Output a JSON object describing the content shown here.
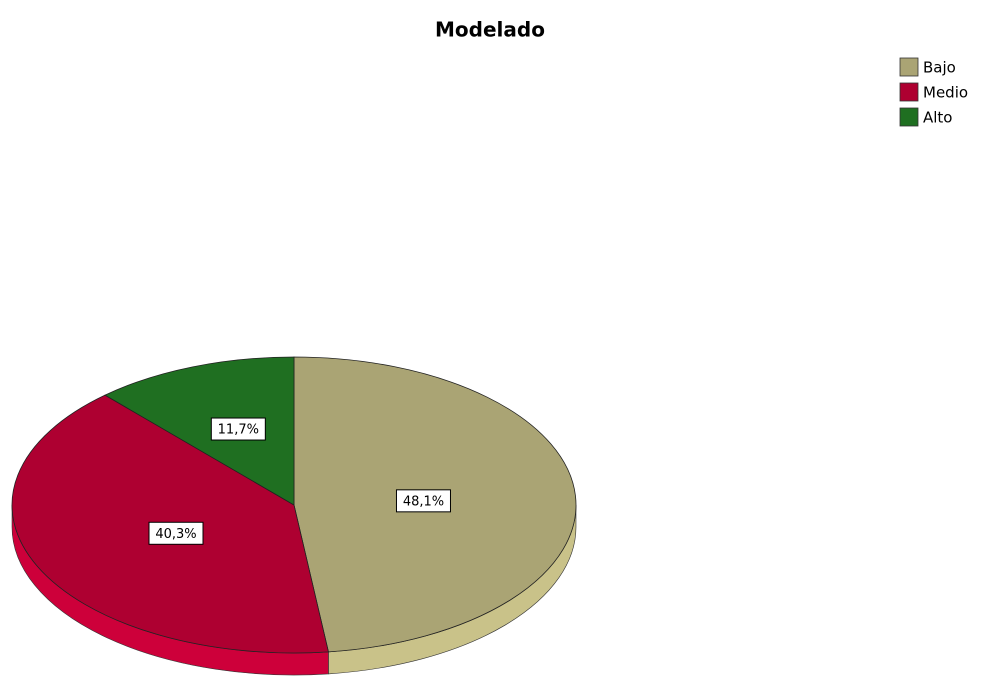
{
  "chart_data": {
    "type": "pie",
    "title": "Modelado",
    "categories": [
      "Bajo",
      "Medio",
      "Alto"
    ],
    "values": [
      48.1,
      40.3,
      11.7
    ],
    "value_labels": [
      "48,1%",
      "40,3%",
      "11,7%"
    ],
    "colors": [
      "#aaa474",
      "#ae0031",
      "#1f6f21"
    ],
    "legend": "top-right"
  }
}
